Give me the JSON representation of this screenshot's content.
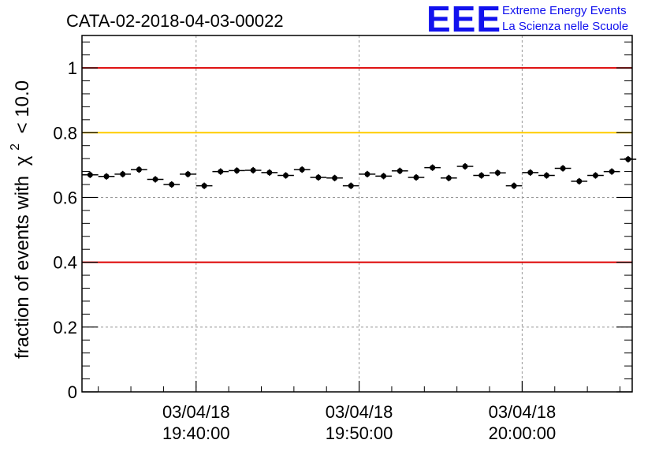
{
  "chart_data": {
    "type": "scatter",
    "title": "CATA-02-2018-04-03-00022",
    "ylabel": "fraction of events with",
    "ylabel_symbol": "χ",
    "ylabel_exponent": "2",
    "ylabel_cut": "< 10.0",
    "ylim": [
      0,
      1.1
    ],
    "yticks": [
      "0",
      "0.2",
      "0.4",
      "0.6",
      "0.8",
      "1"
    ],
    "xlim": [
      "19:33:00",
      "20:06:45"
    ],
    "xticks": [
      {
        "date": "03/04/18",
        "time": "19:40:00"
      },
      {
        "date": "03/04/18",
        "time": "19:50:00"
      },
      {
        "date": "03/04/18",
        "time": "20:00:00"
      }
    ],
    "grid": true,
    "reference_lines": [
      {
        "y": 1.0,
        "color": "#dd0000"
      },
      {
        "y": 0.8,
        "color": "#ffcc00"
      },
      {
        "y": 0.4,
        "color": "#dd0000"
      }
    ],
    "series": [
      {
        "marker_color": "#000000",
        "x": [
          "19:33:30",
          "19:34:30",
          "19:35:30",
          "19:36:30",
          "19:37:30",
          "19:38:30",
          "19:39:30",
          "19:40:30",
          "19:41:30",
          "19:42:30",
          "19:43:30",
          "19:44:30",
          "19:45:30",
          "19:46:30",
          "19:47:30",
          "19:48:30",
          "19:49:30",
          "19:50:30",
          "19:51:30",
          "19:52:30",
          "19:53:30",
          "19:54:30",
          "19:55:30",
          "19:56:30",
          "19:57:30",
          "19:58:30",
          "19:59:30",
          "20:00:30",
          "20:01:30",
          "20:02:30",
          "20:03:30",
          "20:04:30",
          "20:05:30",
          "20:06:30"
        ],
        "values": [
          0.67,
          0.665,
          0.672,
          0.686,
          0.656,
          0.64,
          0.672,
          0.636,
          0.68,
          0.683,
          0.684,
          0.677,
          0.668,
          0.686,
          0.662,
          0.66,
          0.636,
          0.672,
          0.666,
          0.682,
          0.662,
          0.692,
          0.66,
          0.696,
          0.668,
          0.676,
          0.636,
          0.677,
          0.668,
          0.69,
          0.65,
          0.668,
          0.68,
          0.718
        ],
        "errors": [
          0.01,
          0.01,
          0.01,
          0.01,
          0.01,
          0.01,
          0.01,
          0.01,
          0.01,
          0.01,
          0.01,
          0.01,
          0.01,
          0.01,
          0.01,
          0.01,
          0.01,
          0.01,
          0.01,
          0.01,
          0.01,
          0.01,
          0.01,
          0.01,
          0.01,
          0.01,
          0.01,
          0.01,
          0.01,
          0.01,
          0.01,
          0.01,
          0.01,
          0.01
        ],
        "x_halfwidth_seconds": 30
      }
    ]
  },
  "logo": {
    "mark": "EEE",
    "line1": "Extreme Energy Events",
    "line2": "La Scienza nelle Scuole",
    "color": "#1111ee"
  }
}
